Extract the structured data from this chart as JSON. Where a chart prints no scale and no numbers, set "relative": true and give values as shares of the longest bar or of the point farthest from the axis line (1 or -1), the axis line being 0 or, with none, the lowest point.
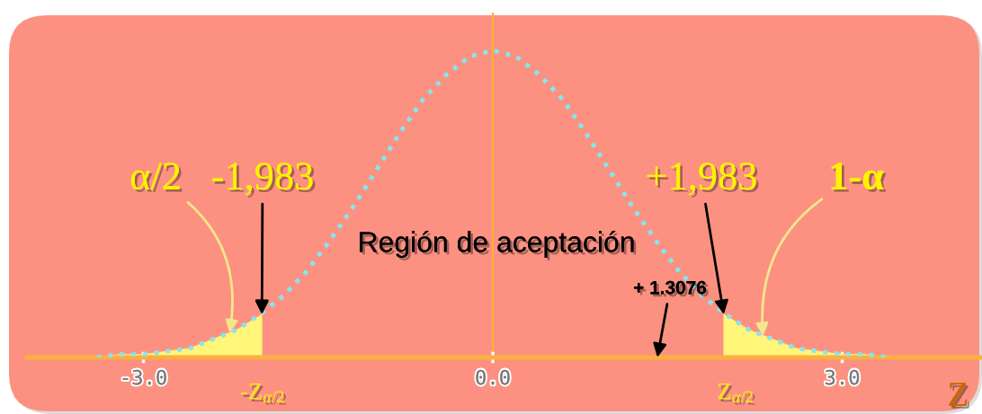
{
  "chart_data": {
    "type": "line",
    "relative": true,
    "xlabel": "Z",
    "x": [
      -3.4,
      -3.2,
      -3.0,
      -2.8,
      -2.6,
      -2.4,
      -2.2,
      -2.0,
      -1.8,
      -1.6,
      -1.4,
      -1.2,
      -1.0,
      -0.8,
      -0.6,
      -0.4,
      -0.2,
      0.0,
      0.2,
      0.4,
      0.6,
      0.8,
      1.0,
      1.2,
      1.4,
      1.6,
      1.8,
      2.0,
      2.2,
      2.4,
      2.6,
      2.8,
      3.0,
      3.2,
      3.4
    ],
    "series": [
      {
        "type": "area",
        "color": "#fff67a",
        "x": [
          -3.4,
          -3.2,
          -3.0,
          -2.8,
          -2.6,
          -2.4,
          -2.2,
          -1.983
        ],
        "values": [
          0.0,
          0.01,
          0.01,
          0.02,
          0.03,
          0.06,
          0.09,
          0.14
        ]
      },
      {
        "type": "area",
        "color": "#fff67a",
        "x": [
          1.983,
          2.2,
          2.4,
          2.6,
          2.8,
          3.0,
          3.2,
          3.4
        ],
        "values": [
          0.14,
          0.09,
          0.06,
          0.03,
          0.02,
          0.01,
          0.01,
          0.0
        ]
      },
      {
        "color": "#86e6ee",
        "values": [
          0.0,
          0.01,
          0.01,
          0.02,
          0.03,
          0.06,
          0.09,
          0.14,
          0.2,
          0.28,
          0.38,
          0.49,
          0.61,
          0.73,
          0.84,
          0.92,
          0.98,
          1.0,
          0.98,
          0.92,
          0.84,
          0.73,
          0.61,
          0.49,
          0.38,
          0.28,
          0.2,
          0.14,
          0.09,
          0.06,
          0.03,
          0.02,
          0.01,
          0.01,
          0.0
        ]
      }
    ],
    "xlim": [
      -4.0,
      4.2
    ],
    "xticks": [
      {
        "value": -3,
        "label": "-3.0"
      },
      {
        "value": 0,
        "label": "0.0"
      },
      {
        "value": 3,
        "label": "3.0"
      }
    ],
    "line_style": "dotted",
    "ref_lines": [
      {
        "axis": "x",
        "value": 0,
        "color": "#f9b23a"
      }
    ],
    "annotations": [
      {
        "text": "α/2",
        "x": -2.26,
        "y": 0.08
      },
      {
        "text": "-1,983",
        "x": -1.983,
        "y": 0.14
      },
      {
        "text": "+1,983",
        "x": 1.983,
        "y": 0.14
      },
      {
        "text": "1-α",
        "x": 2.32,
        "y": 0.07
      },
      "Región de aceptación",
      "+ 1.3076",
      "-Z$_{α/2}$",
      "Z$_{α/2}$"
    ]
  }
}
